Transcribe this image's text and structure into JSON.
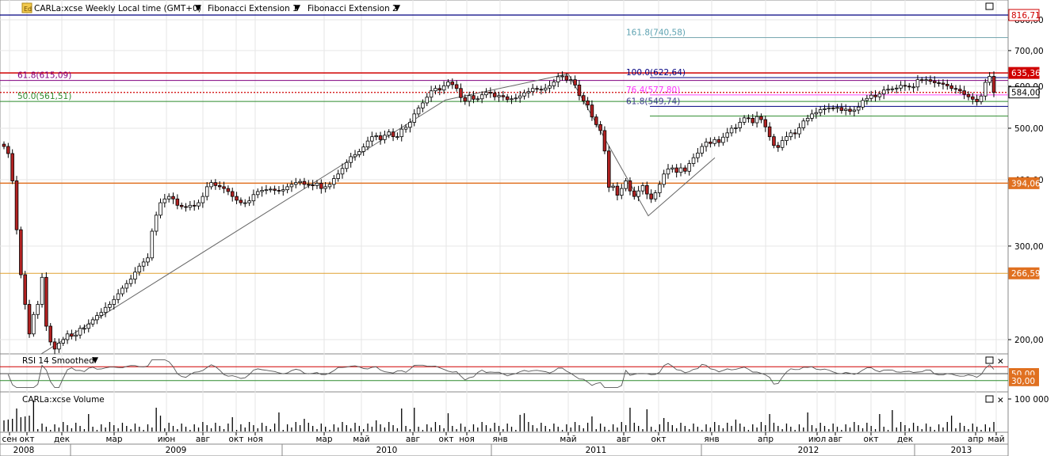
{
  "header": {
    "main_title": "CARLa:xcse Weekly Local time (GMT+0)",
    "fib_ext_1": "Fibonacci Extension 1",
    "fib_ext_2": "Fibonacci Extension 2",
    "rsi_title": "RSI 14 Smoothed",
    "volume_title": "CARLa:xcse Volume"
  },
  "colors": {
    "up_candle": "#ffffff",
    "down_candle": "#b22222",
    "grid": "#e6e6e6",
    "red_line": "#d00000",
    "orange_line": "#e07020",
    "navy_line": "#000080",
    "purple_line": "#800080",
    "green_line": "#2e8b2e",
    "magenta_line": "#ff44ff",
    "teal_line": "#78a8b0",
    "price_tag_red": "#d00000",
    "price_tag_orange": "#e07020"
  },
  "chart_data": [
    {
      "type": "candlestick",
      "title": "CARLa:xcse Weekly Local time (GMT+0)",
      "ylim": [
        180,
        830
      ],
      "y_ticks": [
        "200,00",
        "300,00",
        "400,00",
        "500,00",
        "600,00",
        "700,00",
        "800,00"
      ],
      "x_month_labels": [
        "сен",
        "окт",
        "дек",
        "мар",
        "июн",
        "авг",
        "окт",
        "ноя",
        "мар",
        "май",
        "авг",
        "окт",
        "ноя",
        "янв",
        "май",
        "авг",
        "окт",
        "янв",
        "апр",
        "июл",
        "авг",
        "окт",
        "дек",
        "апр",
        "май"
      ],
      "x_year_labels": [
        "2008",
        "2009",
        "2010",
        "2011",
        "2012",
        "2013"
      ],
      "price_tags": [
        {
          "label": "816,71",
          "value": 816.71,
          "kind": "navy"
        },
        {
          "label": "635,36",
          "value": 635.36,
          "kind": "red"
        },
        {
          "label": "584,00",
          "value": 584.0,
          "kind": "current"
        },
        {
          "label": "394,06",
          "value": 394.06,
          "kind": "orange"
        },
        {
          "label": "266,59",
          "value": 266.59,
          "kind": "orange"
        }
      ],
      "fib_labels": [
        {
          "label": "161.8(740,58)",
          "value": 740.58,
          "kind": "teal"
        },
        {
          "label": "100.0(622,64)",
          "value": 622.64,
          "kind": "navy"
        },
        {
          "label": "76.4(577,80)",
          "value": 577.8,
          "kind": "magenta"
        },
        {
          "label": "61.8(549,74)",
          "value": 549.74,
          "kind": "navy"
        },
        {
          "label": "61.8(615,09)",
          "value": 615.09,
          "kind": "purple"
        },
        {
          "label": "50.0(561,51)",
          "value": 561.51,
          "kind": "green"
        }
      ],
      "trend_points": [
        {
          "date": "2008-12",
          "value": 188
        },
        {
          "date": "2010-10",
          "value": 565
        },
        {
          "date": "2011-05",
          "value": 633
        },
        {
          "date": "2011-10",
          "value": 342
        },
        {
          "date": "2012-03",
          "value": 440
        }
      ],
      "closes": [
        462,
        448,
        398,
        322,
        265,
        233,
        205,
        223,
        233,
        262,
        212,
        198,
        192,
        197,
        200,
        205,
        203,
        204,
        210,
        210,
        214,
        218,
        222,
        225,
        230,
        233,
        238,
        244,
        250,
        255,
        260,
        268,
        275,
        280,
        285,
        320,
        343,
        362,
        368,
        372,
        368,
        358,
        356,
        355,
        358,
        357,
        362,
        372,
        388,
        395,
        390,
        388,
        385,
        380,
        372,
        366,
        362,
        362,
        365,
        375,
        380,
        382,
        383,
        384,
        382,
        381,
        383,
        388,
        392,
        395,
        397,
        392,
        391,
        390,
        394,
        385,
        388,
        392,
        402,
        410,
        420,
        431,
        442,
        446,
        452,
        461,
        473,
        482,
        484,
        476,
        485,
        492,
        482,
        482,
        498,
        502,
        513,
        532,
        546,
        558,
        572,
        588,
        594,
        590,
        601,
        611,
        604,
        594,
        571,
        562,
        576,
        567,
        568,
        578,
        584,
        582,
        573,
        576,
        573,
        566,
        568,
        570,
        575,
        583,
        586,
        594,
        592,
        590,
        595,
        601,
        611,
        625,
        627,
        616,
        617,
        603,
        576,
        563,
        553,
        525,
        508,
        495,
        453,
        387,
        389,
        374,
        385,
        398,
        381,
        372,
        381,
        390,
        376,
        368,
        378,
        392,
        410,
        419,
        421,
        413,
        421,
        415,
        429,
        440,
        449,
        462,
        471,
        468,
        476,
        470,
        481,
        490,
        500,
        501,
        513,
        523,
        522,
        512,
        526,
        519,
        503,
        482,
        464,
        460,
        474,
        482,
        490,
        488,
        501,
        516,
        522,
        532,
        535,
        542,
        544,
        546,
        545,
        547,
        540,
        543,
        538,
        541,
        548,
        564,
        569,
        577,
        573,
        580,
        590,
        592,
        593,
        595,
        602,
        600,
        598,
        598,
        617,
        615,
        617,
        613,
        609,
        608,
        605,
        601,
        594,
        592,
        588,
        579,
        573,
        567,
        561,
        575,
        610,
        626,
        584
      ],
      "rsi": {
        "title": "RSI 14 Smoothed",
        "ylim": [
          0,
          100
        ],
        "levels": [
          70,
          50,
          30
        ],
        "level_labels": [
          "50,00",
          "30,00"
        ]
      },
      "volume": {
        "title": "CARLa:xcse Volume",
        "y_tick": "100 000"
      }
    }
  ]
}
